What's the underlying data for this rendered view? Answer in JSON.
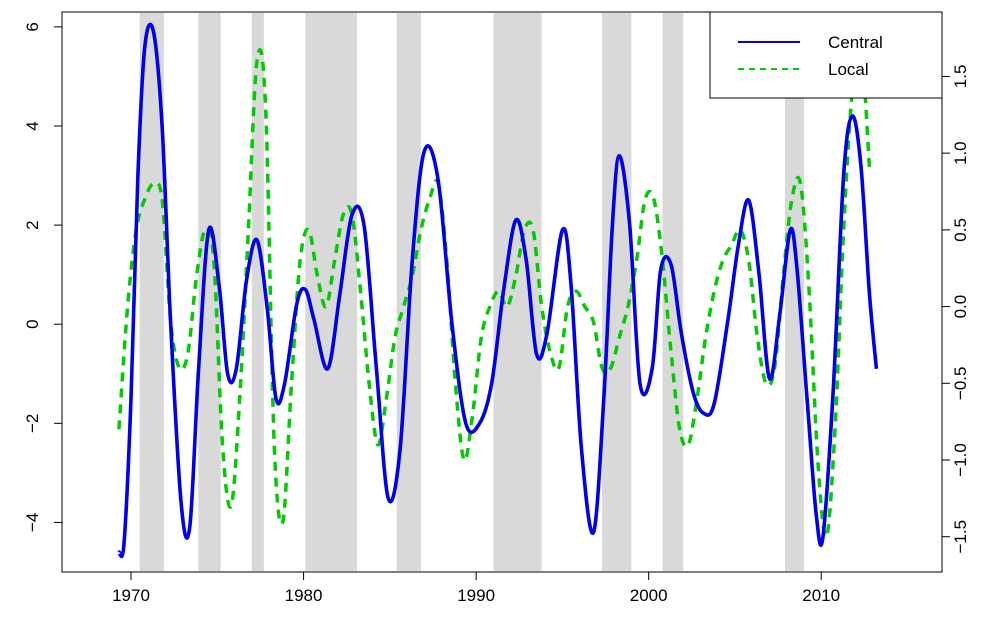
{
  "chart_data": {
    "type": "line",
    "title": "",
    "xlabel": "",
    "ylabel_left": "",
    "ylabel_right": "",
    "xlim": [
      1966.0,
      2017.0
    ],
    "ylim_left": [
      -5.0,
      6.3
    ],
    "ylim_right": [
      -1.73,
      1.92
    ],
    "x_ticks": [
      1970,
      1980,
      1990,
      2000,
      2010
    ],
    "x_tick_labels": [
      "1970",
      "1980",
      "1990",
      "2000",
      "2010"
    ],
    "y_left_ticks": [
      -4,
      -2,
      0,
      2,
      4,
      6
    ],
    "y_left_tick_labels": [
      "−4",
      "−2",
      "0",
      "2",
      "4",
      "6"
    ],
    "y_right_ticks": [
      -1.5,
      -1.0,
      -0.5,
      0.0,
      0.5,
      1.0,
      1.5
    ],
    "y_right_tick_labels": [
      "−1.5",
      "−1.0",
      "−0.5",
      "0.0",
      "0.5",
      "1.0",
      "1.5"
    ],
    "grid": false,
    "legend_position": "top-right",
    "shaded_periods": [
      [
        1970.5,
        1971.9
      ],
      [
        1973.9,
        1975.2
      ],
      [
        1977.0,
        1977.7
      ],
      [
        1980.1,
        1983.1
      ],
      [
        1985.4,
        1986.8
      ],
      [
        1991.0,
        1993.8
      ],
      [
        1997.3,
        1999.0
      ],
      [
        2000.8,
        2002.0
      ],
      [
        2007.9,
        2009.0
      ]
    ],
    "series": [
      {
        "name": "Central",
        "axis": "left",
        "color": "#0000ee",
        "style": "solid",
        "x": [
          1969.3,
          1969.6,
          1970.0,
          1970.4,
          1970.8,
          1971.3,
          1971.8,
          1972.3,
          1972.9,
          1973.4,
          1973.9,
          1974.5,
          1975.1,
          1975.6,
          1976.1,
          1976.7,
          1977.3,
          1977.9,
          1978.4,
          1978.9,
          1979.6,
          1980.1,
          1980.6,
          1981.4,
          1982.1,
          1982.8,
          1983.5,
          1984.2,
          1984.9,
          1985.6,
          1986.3,
          1987.0,
          1987.8,
          1988.6,
          1989.4,
          1990.2,
          1990.9,
          1991.6,
          1992.3,
          1992.9,
          1993.5,
          1994.1,
          1995.0,
          1995.5,
          1996.1,
          1996.8,
          1997.4,
          1997.9,
          1998.3,
          1998.9,
          1999.5,
          2000.2,
          2000.7,
          2001.3,
          2001.9,
          2002.6,
          2003.2,
          2003.8,
          2004.6,
          2005.2,
          2005.8,
          2006.4,
          2007.0,
          2007.6,
          2008.2,
          2008.6,
          2009.2,
          2009.7,
          2010.1,
          2010.7,
          2011.3,
          2011.8,
          2012.3,
          2012.8,
          2013.2
        ],
        "y": [
          -4.6,
          -4.4,
          -1.5,
          3.0,
          5.6,
          5.9,
          4.0,
          0.0,
          -3.6,
          -4.1,
          -1.0,
          1.9,
          0.8,
          -1.0,
          -0.9,
          0.9,
          1.7,
          0.3,
          -1.5,
          -1.2,
          0.4,
          0.7,
          0.1,
          -0.9,
          0.6,
          2.2,
          2.0,
          -0.8,
          -3.5,
          -2.5,
          1.3,
          3.5,
          2.9,
          0.0,
          -2.0,
          -2.0,
          -1.2,
          0.7,
          2.1,
          1.3,
          -0.6,
          -0.2,
          1.9,
          0.8,
          -2.5,
          -4.2,
          -1.5,
          2.0,
          3.4,
          2.0,
          -1.2,
          -0.9,
          1.1,
          1.2,
          -0.2,
          -1.4,
          -1.8,
          -1.6,
          0.1,
          1.6,
          2.5,
          1.0,
          -1.1,
          0.2,
          1.9,
          1.1,
          -1.6,
          -3.8,
          -4.3,
          -1.3,
          3.0,
          4.2,
          3.2,
          0.6,
          -0.9
        ]
      },
      {
        "name": "Local",
        "axis": "right",
        "color": "#00cc00",
        "style": "dashed",
        "x": [
          1969.3,
          1969.8,
          1970.3,
          1970.8,
          1971.3,
          1971.8,
          1972.3,
          1972.8,
          1973.3,
          1973.8,
          1974.3,
          1974.8,
          1975.3,
          1975.8,
          1976.3,
          1976.8,
          1977.3,
          1977.8,
          1978.3,
          1978.8,
          1979.3,
          1979.8,
          1980.3,
          1980.8,
          1981.3,
          1981.8,
          1982.3,
          1982.8,
          1983.3,
          1983.8,
          1984.3,
          1984.8,
          1985.3,
          1985.8,
          1986.3,
          1986.8,
          1987.3,
          1987.8,
          1988.3,
          1988.8,
          1989.3,
          1989.8,
          1990.3,
          1990.8,
          1991.3,
          1991.8,
          1992.3,
          1992.8,
          1993.3,
          1993.8,
          1994.3,
          1994.8,
          1995.3,
          1995.8,
          1996.3,
          1996.8,
          1997.3,
          1997.8,
          1998.3,
          1998.8,
          1999.3,
          1999.8,
          2000.3,
          2000.8,
          2001.3,
          2001.8,
          2002.3,
          2002.8,
          2003.3,
          2003.8,
          2004.3,
          2004.8,
          2005.3,
          2005.8,
          2006.3,
          2006.8,
          2007.3,
          2007.8,
          2008.3,
          2008.8,
          2009.3,
          2009.8,
          2010.3,
          2010.8,
          2011.3,
          2011.8,
          2012.3,
          2012.8
        ],
        "y": [
          -0.8,
          0.0,
          0.5,
          0.7,
          0.8,
          0.7,
          -0.1,
          -0.4,
          -0.3,
          0.2,
          0.5,
          0.3,
          -0.9,
          -1.3,
          -0.6,
          0.5,
          1.6,
          1.3,
          -0.9,
          -1.4,
          -0.5,
          0.3,
          0.5,
          0.2,
          0.0,
          0.3,
          0.6,
          0.6,
          0.1,
          -0.5,
          -0.9,
          -0.6,
          -0.2,
          0.0,
          0.2,
          0.5,
          0.7,
          0.8,
          0.3,
          -0.5,
          -1.0,
          -0.7,
          -0.2,
          0.0,
          0.1,
          0.0,
          0.2,
          0.5,
          0.5,
          0.0,
          -0.3,
          -0.4,
          0.0,
          0.1,
          0.0,
          -0.1,
          -0.4,
          -0.4,
          -0.2,
          0.0,
          0.3,
          0.7,
          0.7,
          0.3,
          -0.3,
          -0.8,
          -0.9,
          -0.6,
          -0.2,
          0.1,
          0.3,
          0.4,
          0.5,
          0.3,
          -0.2,
          -0.5,
          -0.4,
          0.2,
          0.7,
          0.8,
          0.1,
          -1.0,
          -1.5,
          -0.8,
          0.5,
          1.4,
          1.7,
          0.9
        ]
      }
    ]
  }
}
